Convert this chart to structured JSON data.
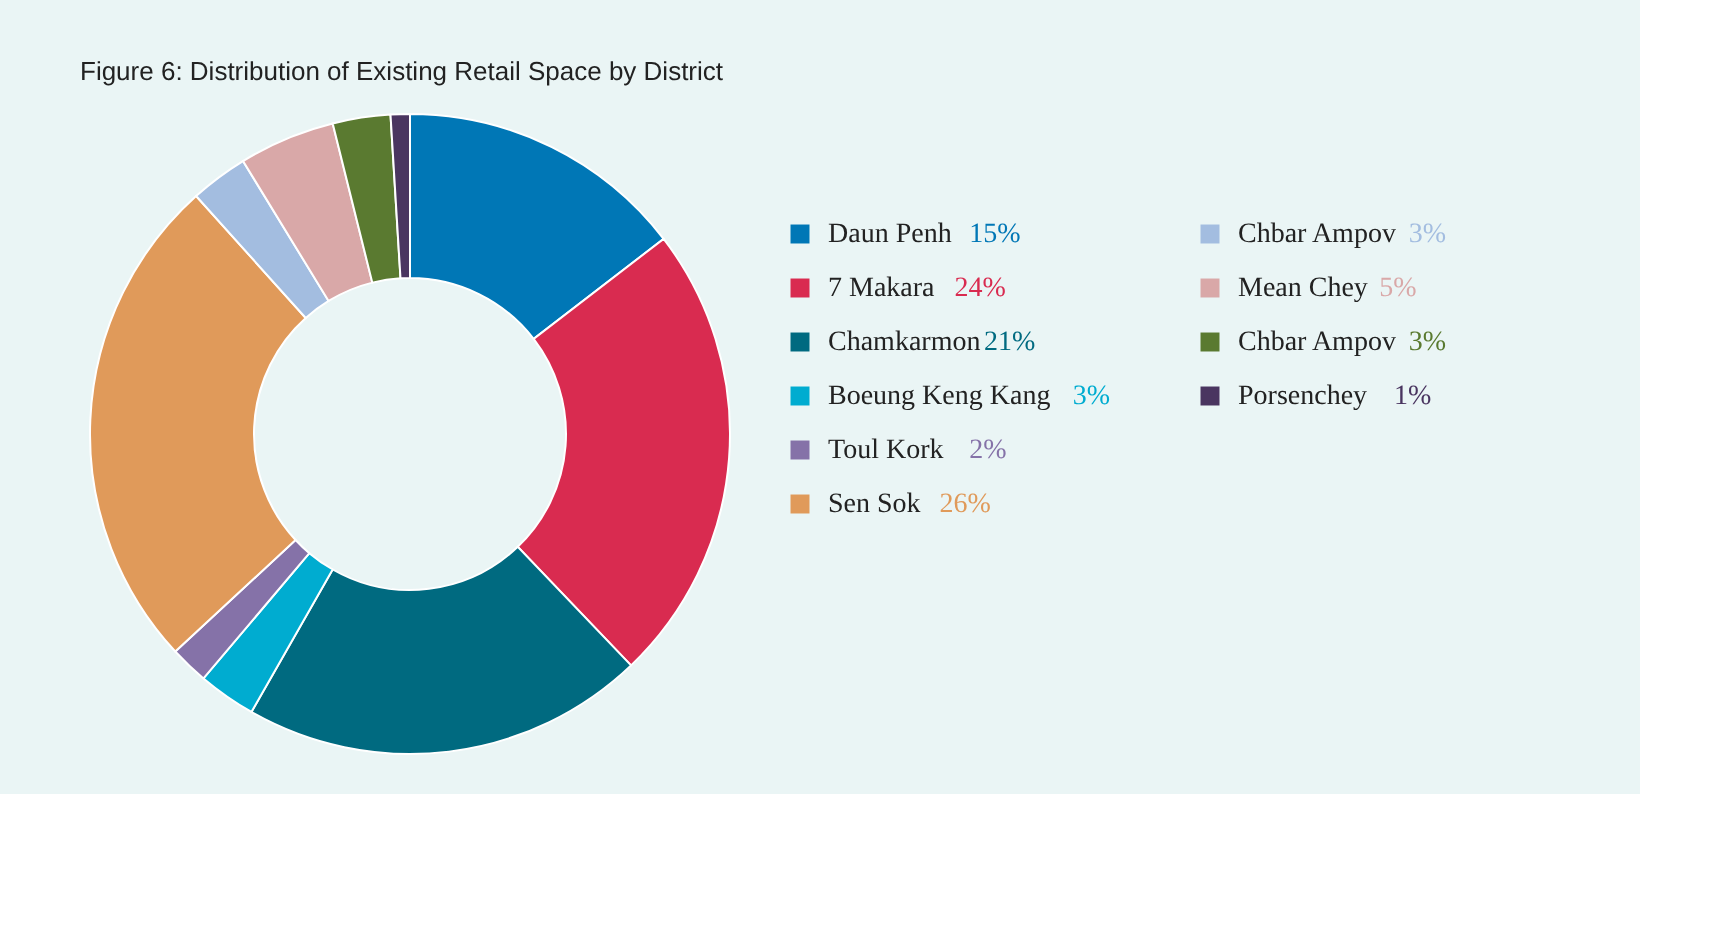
{
  "chart_data": {
    "type": "donut",
    "title": "Figure 6: Distribution of Existing Retail Space by District",
    "categories": [
      "Daun Penh",
      "7 Makara",
      "Chamkarmon",
      "Boeung Keng Kang",
      "Toul Kork",
      "Sen Sok",
      "Chbar Ampov",
      "Mean Chey",
      "Chbar Ampov",
      "Porsenchey"
    ],
    "values": [
      15,
      24,
      21,
      3,
      2,
      26,
      3,
      5,
      3,
      1
    ],
    "value_labels": [
      "15%",
      "24%",
      "21%",
      "3%",
      "2%",
      "26%",
      "3%",
      "5%",
      "3%",
      "1%"
    ],
    "colors": [
      "#0077b6",
      "#d92b50",
      "#006a80",
      "#00acd0",
      "#8572a8",
      "#e09a5a",
      "#a3bde0",
      "#d9a8a8",
      "#5a7a30",
      "#4a3560"
    ],
    "legend": "right"
  }
}
